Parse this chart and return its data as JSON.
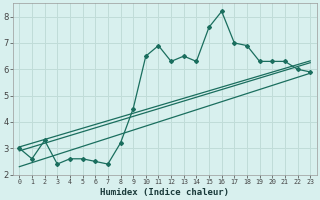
{
  "xlabel": "Humidex (Indice chaleur)",
  "bg_color": "#d8f0ee",
  "grid_color": "#c0dcd8",
  "line_color": "#1a6e5e",
  "xlim": [
    -0.5,
    23.5
  ],
  "ylim": [
    2.0,
    8.5
  ],
  "yticks": [
    2,
    3,
    4,
    5,
    6,
    7,
    8
  ],
  "xticks": [
    0,
    1,
    2,
    3,
    4,
    5,
    6,
    7,
    8,
    9,
    10,
    11,
    12,
    13,
    14,
    15,
    16,
    17,
    18,
    19,
    20,
    21,
    22,
    23
  ],
  "main_x": [
    0,
    1,
    2,
    3,
    4,
    5,
    6,
    7,
    8,
    9,
    10,
    11,
    12,
    13,
    14,
    15,
    16,
    17,
    18,
    19,
    20,
    21,
    22,
    23
  ],
  "main_y": [
    3.0,
    2.6,
    3.3,
    2.4,
    2.6,
    2.6,
    2.5,
    2.4,
    3.2,
    4.5,
    6.5,
    6.9,
    6.3,
    6.5,
    6.3,
    7.6,
    8.2,
    7.0,
    6.9,
    6.3,
    6.3,
    6.3,
    6.0,
    5.9
  ],
  "upper_line": [
    3.05,
    6.32
  ],
  "mid_line": [
    2.9,
    6.25
  ],
  "lower_line": [
    2.3,
    5.85
  ]
}
